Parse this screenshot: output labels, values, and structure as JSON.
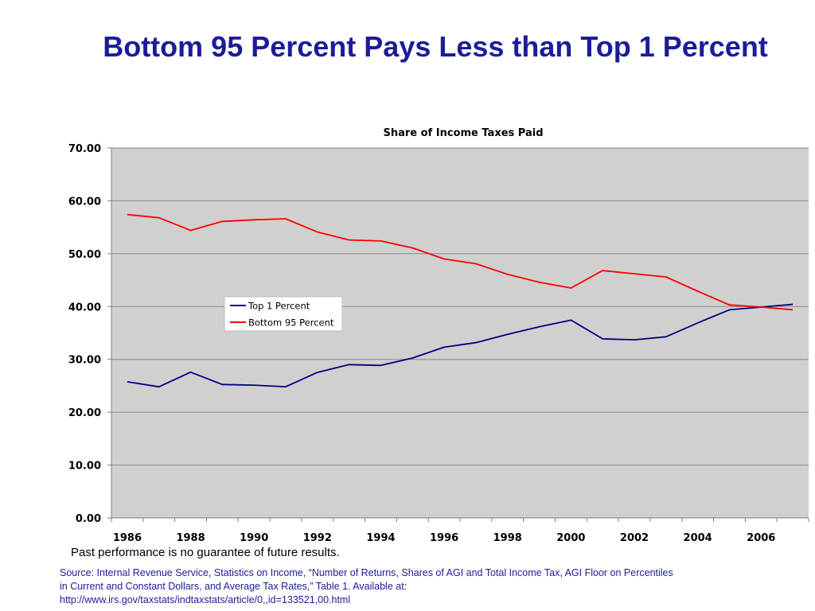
{
  "slide": {
    "title": "Bottom 95 Percent Pays Less than Top 1 Percent",
    "disclaimer": "Past performance is no guarantee of future results.",
    "source_lines": [
      "Source: Internal Revenue Service, Statistics on Income, “Number of Returns, Shares of AGI and Total Income Tax, AGI Floor on Percentiles",
      "in Current and Constant Dollars, and Average Tax Rates,” Table 1. Available at:",
      "http://www.irs.gov/taxstats/indtaxstats/article/0,,id=133521,00.html"
    ]
  },
  "chart_data": {
    "type": "line",
    "title": "Share of Income Taxes Paid",
    "xlabel": "",
    "ylabel": "",
    "x": [
      1986,
      1987,
      1988,
      1989,
      1990,
      1991,
      1992,
      1993,
      1994,
      1995,
      1996,
      1997,
      1998,
      1999,
      2000,
      2001,
      2002,
      2003,
      2004,
      2005,
      2006,
      2007
    ],
    "x_tick_labels": [
      "1986",
      "1988",
      "1990",
      "1992",
      "1994",
      "1996",
      "1998",
      "2000",
      "2002",
      "2004",
      "2006"
    ],
    "y_tick_labels": [
      "0.00",
      "10.00",
      "20.00",
      "30.00",
      "40.00",
      "50.00",
      "60.00",
      "70.00"
    ],
    "xlim": [
      1986,
      2008
    ],
    "ylim": [
      0,
      70
    ],
    "grid": true,
    "legend_placement": "center-left",
    "plot_background": "#d0d0d0",
    "series": [
      {
        "name": "Top 1 Percent",
        "color": "#000080",
        "values": [
          25.75,
          24.81,
          27.58,
          25.24,
          25.13,
          24.82,
          27.54,
          29.01,
          28.86,
          30.26,
          32.31,
          33.17,
          34.75,
          36.18,
          37.42,
          33.89,
          33.71,
          34.27,
          36.89,
          39.38,
          39.89,
          40.42
        ]
      },
      {
        "name": "Bottom 95 Percent",
        "color": "#ff0000",
        "values": [
          57.4,
          56.8,
          54.4,
          56.1,
          56.4,
          56.6,
          54.1,
          52.6,
          52.4,
          51.1,
          49.0,
          48.1,
          46.1,
          44.6,
          43.5,
          46.8,
          46.2,
          45.6,
          42.9,
          40.3,
          39.9,
          39.4
        ]
      }
    ]
  }
}
